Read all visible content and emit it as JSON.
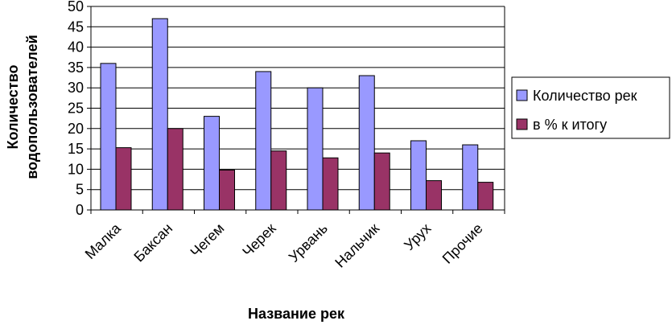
{
  "chart_data": {
    "type": "bar",
    "xlabel": "Название рек",
    "ylabel_lines": [
      "Количество",
      "водопользователей"
    ],
    "ylim": [
      0,
      50
    ],
    "y_ticks": [
      0,
      5,
      10,
      15,
      20,
      25,
      30,
      35,
      40,
      45,
      50
    ],
    "categories": [
      "Малка",
      "Баксан",
      "Чегем",
      "Черек",
      "Урвань",
      "Нальчик",
      "Урух",
      "Прочие"
    ],
    "series": [
      {
        "name": "Количество рек",
        "color": "#9999ff",
        "values": [
          36,
          47,
          23,
          34,
          30,
          33,
          17,
          16
        ]
      },
      {
        "name": "в % к итогу",
        "color": "#993366",
        "values": [
          15.3,
          20,
          9.8,
          14.5,
          12.8,
          14,
          7.2,
          6.8
        ]
      }
    ],
    "grid": "horizontal",
    "legend_position": "right"
  }
}
